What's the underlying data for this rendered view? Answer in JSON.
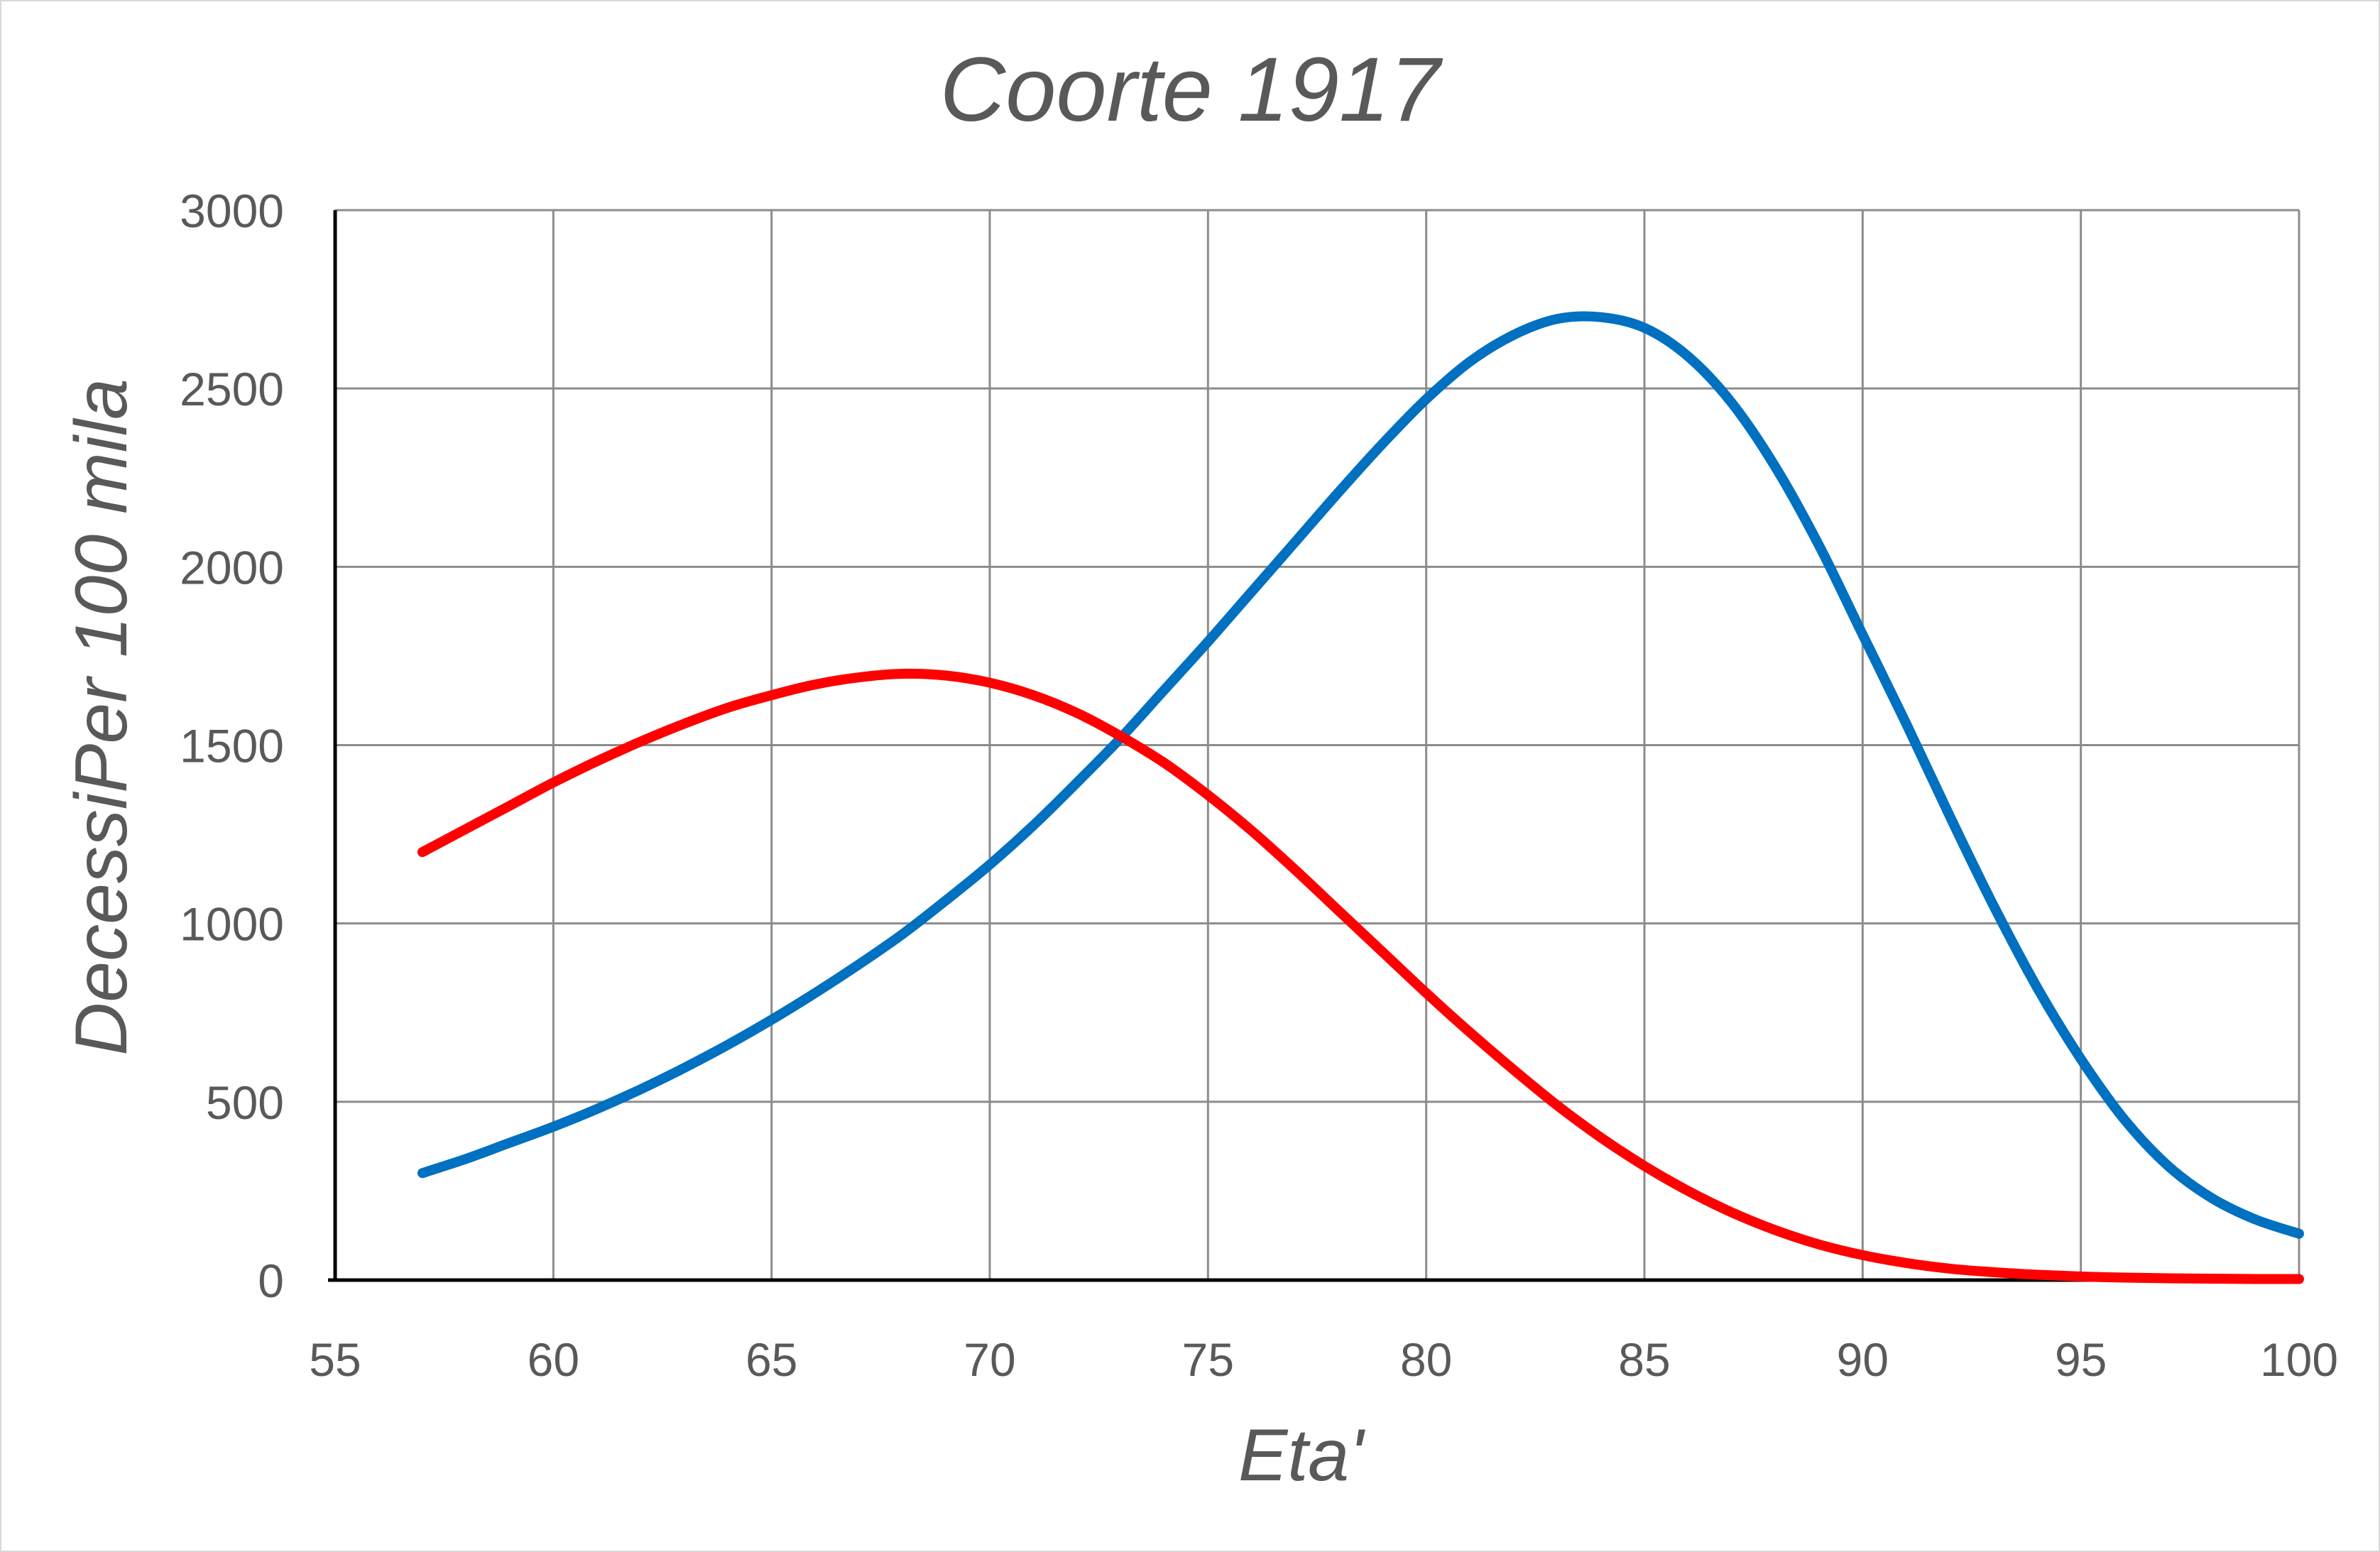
{
  "chart_data": {
    "type": "line",
    "title": "Coorte 1917",
    "xlabel": "Eta'",
    "ylabel": "DecessiPer 100 mila",
    "xlim": [
      55,
      100
    ],
    "ylim": [
      0,
      3000
    ],
    "xticks": [
      "55",
      "60",
      "65",
      "70",
      "75",
      "80",
      "85",
      "90",
      "95",
      "100"
    ],
    "yticks": [
      "0",
      "500",
      "1000",
      "1500",
      "2000",
      "2500",
      "3000"
    ],
    "grid": true,
    "legend": "none",
    "series": [
      {
        "name": "blue curve",
        "color": "#0070c0",
        "x": [
          57,
          58,
          59,
          60,
          61,
          62,
          63,
          64,
          65,
          66,
          67,
          68,
          69,
          70,
          71,
          72,
          73,
          74,
          75,
          76,
          77,
          78,
          79,
          80,
          81,
          82,
          83,
          84,
          85,
          86,
          87,
          88,
          89,
          90,
          91,
          92,
          93,
          94,
          95,
          96,
          97,
          98,
          99,
          100
        ],
        "y": [
          300,
          340,
          385,
          430,
          480,
          535,
          595,
          660,
          730,
          805,
          885,
          970,
          1065,
          1165,
          1275,
          1395,
          1520,
          1655,
          1790,
          1930,
          2070,
          2210,
          2345,
          2470,
          2575,
          2650,
          2695,
          2700,
          2670,
          2590,
          2460,
          2280,
          2060,
          1810,
          1560,
          1300,
          1050,
          820,
          620,
          450,
          320,
          230,
          170,
          130
        ]
      },
      {
        "name": "red curve",
        "color": "#ff0000",
        "x": [
          57,
          58,
          59,
          60,
          61,
          62,
          63,
          64,
          65,
          66,
          67,
          68,
          69,
          70,
          71,
          72,
          73,
          74,
          75,
          76,
          77,
          78,
          79,
          80,
          81,
          82,
          83,
          84,
          85,
          86,
          87,
          88,
          89,
          90,
          91,
          92,
          93,
          94,
          95,
          96,
          97,
          98,
          99,
          100
        ],
        "y": [
          1200,
          1265,
          1330,
          1395,
          1455,
          1510,
          1560,
          1605,
          1640,
          1670,
          1690,
          1700,
          1695,
          1675,
          1640,
          1590,
          1525,
          1450,
          1360,
          1260,
          1150,
          1035,
          920,
          805,
          695,
          590,
          490,
          400,
          320,
          250,
          190,
          140,
          100,
          70,
          48,
          32,
          22,
          15,
          10,
          7,
          5,
          4,
          3,
          3
        ]
      }
    ]
  }
}
